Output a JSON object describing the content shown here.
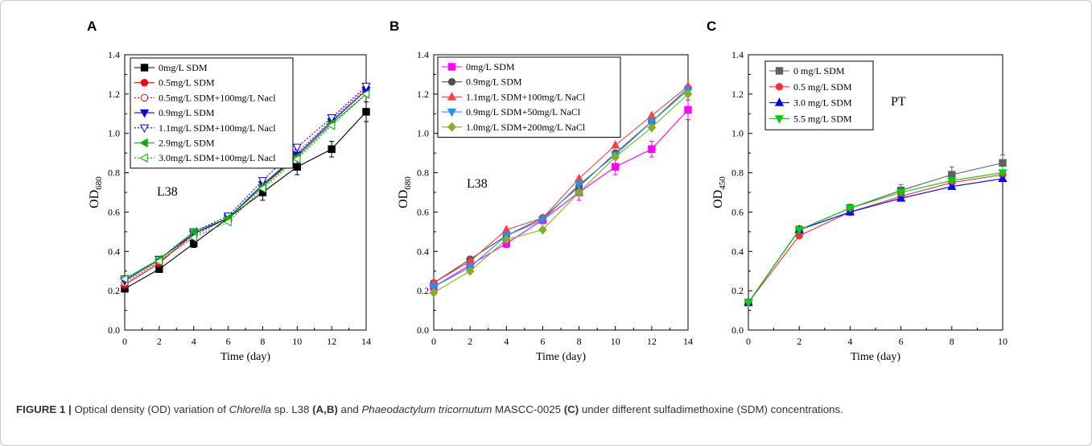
{
  "chart_data": [
    {
      "panel": "A",
      "type": "line",
      "annotation": "L38",
      "xlabel": "Time (day)",
      "ylabel": "OD",
      "ylabel_sub": "680",
      "xlim": [
        0,
        14
      ],
      "ylim": [
        0.0,
        1.4
      ],
      "xticks": [
        0,
        2,
        4,
        6,
        8,
        10,
        12,
        14
      ],
      "yticks": [
        "0.0",
        "0.2",
        "0.4",
        "0.6",
        "0.8",
        "1.0",
        "1.2",
        "1.4"
      ],
      "x": [
        0,
        2,
        4,
        6,
        8,
        10,
        12,
        14
      ],
      "legend_position": "top-left",
      "series": [
        {
          "name": "0mg/L SDM",
          "color": "#000000",
          "marker": "square",
          "fill": true,
          "dash": false,
          "values": [
            0.21,
            0.31,
            0.44,
            0.57,
            0.7,
            0.83,
            0.92,
            1.11
          ],
          "errors": [
            0.01,
            0.01,
            0.02,
            0.02,
            0.04,
            0.04,
            0.04,
            0.05
          ]
        },
        {
          "name": "0.5mg/L SDM",
          "color": "#ff0000",
          "marker": "circle",
          "fill": true,
          "dash": false,
          "values": [
            0.23,
            0.34,
            0.49,
            0.57,
            0.73,
            0.89,
            1.06,
            1.22
          ],
          "errors": [
            0.01,
            0.01,
            0.01,
            0.01,
            0.01,
            0.01,
            0.01,
            0.01
          ]
        },
        {
          "name": "0.5mg/L SDM+100mg/L Nacl",
          "color": "#ff0000",
          "marker": "circle",
          "fill": false,
          "dash": true,
          "values": [
            0.24,
            0.35,
            0.48,
            0.57,
            0.73,
            0.9,
            1.07,
            1.23
          ],
          "errors": [
            0.01,
            0.01,
            0.01,
            0.01,
            0.01,
            0.01,
            0.01,
            0.01
          ]
        },
        {
          "name": "0.9mg/L SDM",
          "color": "#0000ff",
          "marker": "tri-down",
          "fill": true,
          "dash": false,
          "values": [
            0.25,
            0.36,
            0.49,
            0.57,
            0.74,
            0.89,
            1.06,
            1.22
          ],
          "errors": [
            0.01,
            0.01,
            0.01,
            0.01,
            0.01,
            0.01,
            0.01,
            0.01
          ]
        },
        {
          "name": "1.1mg/L SDM+100mg/L Nacl",
          "color": "#0000ff",
          "marker": "tri-down",
          "fill": false,
          "dash": true,
          "values": [
            0.26,
            0.36,
            0.5,
            0.58,
            0.76,
            0.93,
            1.08,
            1.24
          ],
          "errors": [
            0.01,
            0.01,
            0.01,
            0.01,
            0.01,
            0.01,
            0.01,
            0.01
          ]
        },
        {
          "name": "2.9mg/L SDM",
          "color": "#00b000",
          "marker": "tri-left",
          "fill": true,
          "dash": false,
          "values": [
            0.26,
            0.36,
            0.5,
            0.57,
            0.73,
            0.88,
            1.05,
            1.2
          ],
          "errors": [
            0.01,
            0.01,
            0.01,
            0.01,
            0.01,
            0.01,
            0.01,
            0.01
          ]
        },
        {
          "name": "3.0mg/L SDM+100mg/L Nacl",
          "color": "#00b000",
          "marker": "tri-left",
          "fill": false,
          "dash": true,
          "values": [
            0.26,
            0.35,
            0.47,
            0.55,
            0.72,
            0.87,
            1.04,
            1.2
          ],
          "errors": [
            0.01,
            0.01,
            0.01,
            0.01,
            0.01,
            0.01,
            0.01,
            0.01
          ]
        }
      ]
    },
    {
      "panel": "B",
      "type": "line",
      "annotation": "L38",
      "xlabel": "Time (day)",
      "ylabel": "OD",
      "ylabel_sub": "680",
      "xlim": [
        0,
        14
      ],
      "ylim": [
        0.0,
        1.4
      ],
      "xticks": [
        0,
        2,
        4,
        6,
        8,
        10,
        12,
        14
      ],
      "yticks": [
        "0.0",
        "0.2",
        "0.4",
        "0.6",
        "0.8",
        "1.0",
        "1.2",
        "1.4"
      ],
      "x": [
        0,
        2,
        4,
        6,
        8,
        10,
        12,
        14
      ],
      "legend_position": "top-left",
      "series": [
        {
          "name": "0mg/L SDM",
          "color": "#ff00ff",
          "marker": "square",
          "fill": true,
          "dash": false,
          "values": [
            0.22,
            0.33,
            0.44,
            0.56,
            0.7,
            0.83,
            0.92,
            1.12
          ],
          "errors": [
            0.01,
            0.01,
            0.02,
            0.02,
            0.04,
            0.04,
            0.04,
            0.05
          ]
        },
        {
          "name": "0.9mg/L SDM",
          "color": "#505050",
          "marker": "circle",
          "fill": true,
          "dash": false,
          "values": [
            0.24,
            0.36,
            0.48,
            0.57,
            0.73,
            0.9,
            1.06,
            1.23
          ],
          "errors": [
            0.01,
            0.01,
            0.01,
            0.01,
            0.01,
            0.01,
            0.01,
            0.01
          ]
        },
        {
          "name": "1.1mg/L SDM+100mg/L NaCl",
          "color": "#ff4040",
          "marker": "tri-up",
          "fill": true,
          "dash": false,
          "values": [
            0.24,
            0.35,
            0.51,
            0.57,
            0.77,
            0.94,
            1.09,
            1.24
          ],
          "errors": [
            0.01,
            0.01,
            0.01,
            0.01,
            0.01,
            0.01,
            0.01,
            0.01
          ]
        },
        {
          "name": "0.9mg/L SDM+50mg/L NaCl",
          "color": "#2090ff",
          "marker": "tri-down",
          "fill": true,
          "dash": false,
          "values": [
            0.22,
            0.32,
            0.48,
            0.56,
            0.74,
            0.89,
            1.06,
            1.22
          ],
          "errors": [
            0.01,
            0.01,
            0.01,
            0.01,
            0.01,
            0.01,
            0.01,
            0.01
          ]
        },
        {
          "name": "1.0mg/L SDM+200mg/L NaCl",
          "color": "#7fb020",
          "marker": "diamond",
          "fill": true,
          "dash": false,
          "values": [
            0.19,
            0.3,
            0.46,
            0.51,
            0.7,
            0.88,
            1.03,
            1.2
          ],
          "errors": [
            0.01,
            0.01,
            0.01,
            0.01,
            0.01,
            0.01,
            0.01,
            0.01
          ]
        }
      ]
    },
    {
      "panel": "C",
      "type": "line",
      "annotation": "PT",
      "xlabel": "Time (day)",
      "ylabel": "OD",
      "ylabel_sub": "450",
      "xlim": [
        0,
        10
      ],
      "ylim": [
        0.0,
        1.4
      ],
      "xticks": [
        0,
        2,
        4,
        6,
        8,
        10
      ],
      "yticks": [
        "0.0",
        "0.2",
        "0.4",
        "0.6",
        "0.8",
        "1.0",
        "1.2",
        "1.4"
      ],
      "x": [
        0,
        2,
        4,
        6,
        8,
        10
      ],
      "legend_position": "top-left",
      "series": [
        {
          "name": "0 mg/L SDM",
          "color": "#606060",
          "marker": "square",
          "fill": true,
          "dash": false,
          "values": [
            0.14,
            0.51,
            0.62,
            0.71,
            0.79,
            0.85
          ],
          "errors": [
            0.01,
            0.02,
            0.02,
            0.03,
            0.04,
            0.04
          ]
        },
        {
          "name": "0.5 mg/L SDM",
          "color": "#ff3030",
          "marker": "circle",
          "fill": true,
          "dash": false,
          "values": [
            0.14,
            0.48,
            0.6,
            0.68,
            0.75,
            0.79
          ],
          "errors": [
            0.01,
            0.01,
            0.01,
            0.01,
            0.01,
            0.01
          ]
        },
        {
          "name": "3.0 mg/L SDM",
          "color": "#0000ff",
          "marker": "tri-up",
          "fill": true,
          "dash": false,
          "values": [
            0.14,
            0.51,
            0.6,
            0.67,
            0.73,
            0.77
          ],
          "errors": [
            0.01,
            0.01,
            0.01,
            0.01,
            0.01,
            0.01
          ]
        },
        {
          "name": "5.5 mg/L SDM",
          "color": "#00d000",
          "marker": "tri-down",
          "fill": true,
          "dash": false,
          "values": [
            0.14,
            0.51,
            0.62,
            0.7,
            0.76,
            0.8
          ],
          "errors": [
            0.01,
            0.01,
            0.01,
            0.01,
            0.01,
            0.01
          ]
        }
      ]
    }
  ],
  "caption": {
    "figure_label": "FIGURE 1 |",
    "t1": " Optical density (OD) variation of ",
    "i1": "Chlorella",
    "t2": " sp. L38 ",
    "b1": "(A,B)",
    "t3": " and ",
    "i2": "Phaeodactylum tricornutum",
    "t4": " MASCC-0025 ",
    "b2": "(C)",
    "t5": " under different sulfadimethoxine (SDM) concentrations."
  }
}
